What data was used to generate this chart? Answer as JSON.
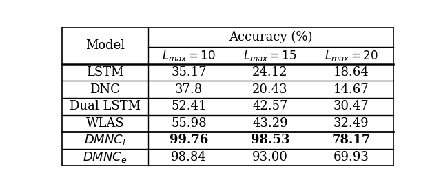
{
  "title": "Accuracy (%)",
  "col_header_1": "Model",
  "col_headers": [
    "$L_{max} = 10$",
    "$L_{max} = 15$",
    "$L_{max} = 20$"
  ],
  "rows": [
    {
      "model": "LSTM",
      "italic": false,
      "bold_vals": false,
      "vals": [
        "35.17",
        "24.12",
        "18.64"
      ]
    },
    {
      "model": "DNC",
      "italic": false,
      "bold_vals": false,
      "vals": [
        "37.8",
        "20.43",
        "14.67"
      ]
    },
    {
      "model": "Dual LSTM",
      "italic": false,
      "bold_vals": false,
      "vals": [
        "52.41",
        "42.57",
        "30.47"
      ]
    },
    {
      "model": "WLAS",
      "italic": false,
      "bold_vals": false,
      "vals": [
        "55.98",
        "43.29",
        "32.49"
      ]
    },
    {
      "model": "$DMNC_l$",
      "italic": true,
      "bold_vals": true,
      "vals": [
        "99.76",
        "98.53",
        "78.17"
      ]
    },
    {
      "model": "$DMNC_e$",
      "italic": true,
      "bold_vals": false,
      "vals": [
        "98.84",
        "93.00",
        "69.93"
      ]
    }
  ],
  "figsize": [
    6.4,
    2.77
  ],
  "dpi": 100,
  "bg_color": "#ffffff",
  "line_color": "#000000",
  "font_size": 13,
  "header_font_size": 13
}
